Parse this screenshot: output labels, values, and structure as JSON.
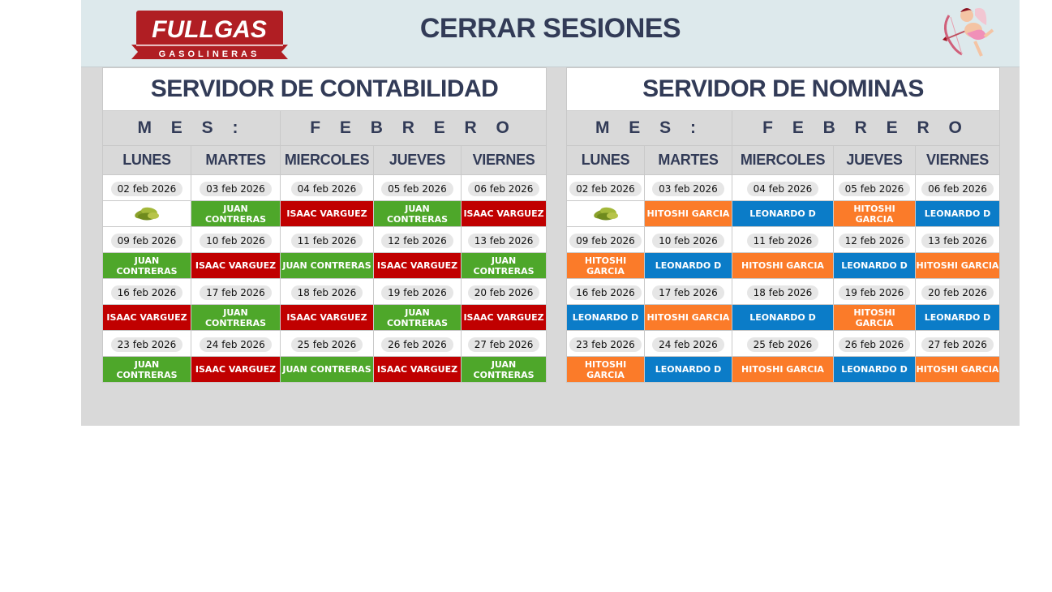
{
  "header": {
    "title": "CERRAR SESIONES",
    "logo_text": "FULLGAS",
    "logo_subtext": "GASOLINERAS"
  },
  "colors": {
    "juan": "#4ea72a",
    "isaac": "#c00000",
    "hitoshi": "#fb7b29",
    "leonardo": "#0b7cc8",
    "text": "#323b57"
  },
  "tables": [
    {
      "title": "SERVIDOR DE CONTABILIDAD",
      "mes_label": "M E S :",
      "mes_value": "F E B R E R O",
      "days": [
        "LUNES",
        "MARTES",
        "MIERCOLES",
        "JUEVES",
        "VIERNES"
      ],
      "weeks": [
        {
          "dates": [
            "02 feb 2026",
            "03 feb 2026",
            "04 feb 2026",
            "05 feb 2026",
            "06 feb 2026"
          ],
          "names": [
            {
              "icon": "tamales-icon"
            },
            {
              "name": "JUAN CONTRERAS",
              "color": "green"
            },
            {
              "name": "ISAAC VARGUEZ",
              "color": "red"
            },
            {
              "name": "JUAN CONTRERAS",
              "color": "green"
            },
            {
              "name": "ISAAC VARGUEZ",
              "color": "red"
            }
          ]
        },
        {
          "dates": [
            "09 feb 2026",
            "10 feb 2026",
            "11 feb 2026",
            "12 feb 2026",
            "13 feb 2026"
          ],
          "names": [
            {
              "name": "JUAN CONTRERAS",
              "color": "green"
            },
            {
              "name": "ISAAC VARGUEZ",
              "color": "red"
            },
            {
              "name": "JUAN CONTRERAS",
              "color": "green"
            },
            {
              "name": "ISAAC VARGUEZ",
              "color": "red"
            },
            {
              "name": "JUAN CONTRERAS",
              "color": "green"
            }
          ]
        },
        {
          "dates": [
            "16 feb 2026",
            "17 feb 2026",
            "18 feb 2026",
            "19 feb 2026",
            "20 feb 2026"
          ],
          "names": [
            {
              "name": "ISAAC VARGUEZ",
              "color": "red"
            },
            {
              "name": "JUAN CONTRERAS",
              "color": "green"
            },
            {
              "name": "ISAAC VARGUEZ",
              "color": "red"
            },
            {
              "name": "JUAN CONTRERAS",
              "color": "green"
            },
            {
              "name": "ISAAC VARGUEZ",
              "color": "red"
            }
          ]
        },
        {
          "dates": [
            "23 feb 2026",
            "24 feb 2026",
            "25 feb 2026",
            "26 feb 2026",
            "27 feb 2026"
          ],
          "names": [
            {
              "name": "JUAN CONTRERAS",
              "color": "green"
            },
            {
              "name": "ISAAC VARGUEZ",
              "color": "red"
            },
            {
              "name": "JUAN CONTRERAS",
              "color": "green"
            },
            {
              "name": "ISAAC VARGUEZ",
              "color": "red"
            },
            {
              "name": "JUAN CONTRERAS",
              "color": "green"
            }
          ]
        }
      ]
    },
    {
      "title": "SERVIDOR DE NOMINAS",
      "mes_label": "M E S :",
      "mes_value": "F E B R E R O",
      "days": [
        "LUNES",
        "MARTES",
        "MIERCOLES",
        "JUEVES",
        "VIERNES"
      ],
      "weeks": [
        {
          "dates": [
            "02 feb 2026",
            "03 feb 2026",
            "04 feb 2026",
            "05 feb 2026",
            "06 feb 2026"
          ],
          "names": [
            {
              "icon": "tamales-icon"
            },
            {
              "name": "HITOSHI GARCIA",
              "color": "orange"
            },
            {
              "name": "LEONARDO D",
              "color": "blue"
            },
            {
              "name": "HITOSHI GARCIA",
              "color": "orange"
            },
            {
              "name": "LEONARDO D",
              "color": "blue"
            }
          ]
        },
        {
          "dates": [
            "09 feb 2026",
            "10 feb 2026",
            "11 feb 2026",
            "12 feb 2026",
            "13 feb 2026"
          ],
          "names": [
            {
              "name": "HITOSHI GARCIA",
              "color": "orange"
            },
            {
              "name": "LEONARDO D",
              "color": "blue"
            },
            {
              "name": "HITOSHI GARCIA",
              "color": "orange"
            },
            {
              "name": "LEONARDO D",
              "color": "blue"
            },
            {
              "name": "HITOSHI GARCIA",
              "color": "orange"
            }
          ]
        },
        {
          "dates": [
            "16 feb 2026",
            "17 feb 2026",
            "18 feb 2026",
            "19 feb 2026",
            "20 feb 2026"
          ],
          "names": [
            {
              "name": "LEONARDO D",
              "color": "blue"
            },
            {
              "name": "HITOSHI GARCIA",
              "color": "orange"
            },
            {
              "name": "LEONARDO D",
              "color": "blue"
            },
            {
              "name": "HITOSHI GARCIA",
              "color": "orange"
            },
            {
              "name": "LEONARDO D",
              "color": "blue"
            }
          ]
        },
        {
          "dates": [
            "23 feb 2026",
            "24 feb 2026",
            "25 feb 2026",
            "26 feb 2026",
            "27 feb 2026"
          ],
          "names": [
            {
              "name": "HITOSHI GARCIA",
              "color": "orange"
            },
            {
              "name": "LEONARDO D",
              "color": "blue"
            },
            {
              "name": "HITOSHI GARCIA",
              "color": "orange"
            },
            {
              "name": "LEONARDO D",
              "color": "blue"
            },
            {
              "name": "HITOSHI GARCIA",
              "color": "orange"
            }
          ]
        }
      ]
    }
  ]
}
